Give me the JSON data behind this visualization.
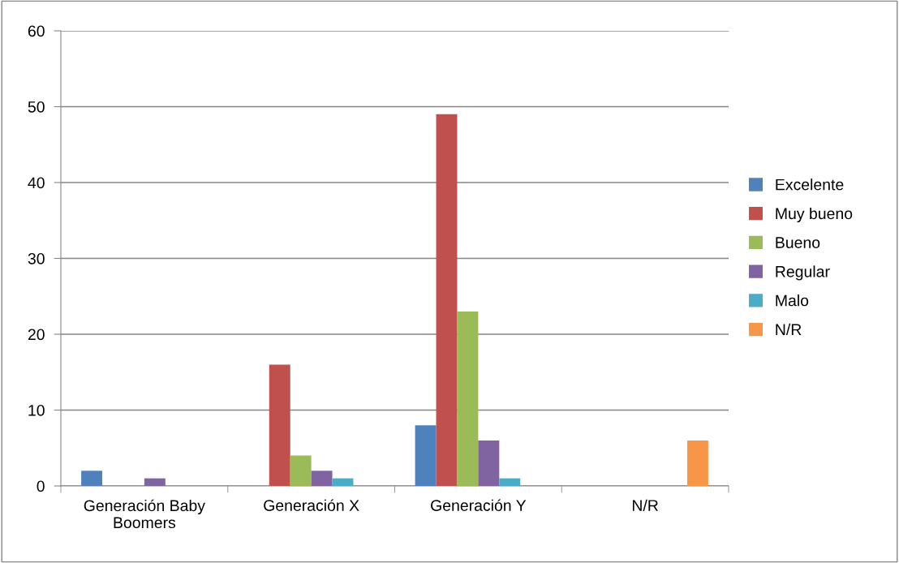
{
  "chart_data": {
    "type": "bar",
    "categories": [
      "Generación Baby Boomers",
      "Generación X",
      "Generación Y",
      "N/R"
    ],
    "series": [
      {
        "name": "Excelente",
        "color": "#4f81bd",
        "values": [
          2,
          0,
          8,
          0
        ]
      },
      {
        "name": "Muy bueno",
        "color": "#c0504d",
        "values": [
          0,
          16,
          49,
          0
        ]
      },
      {
        "name": "Bueno",
        "color": "#9bbb59",
        "values": [
          0,
          4,
          23,
          0
        ]
      },
      {
        "name": "Regular",
        "color": "#8064a2",
        "values": [
          1,
          2,
          6,
          0
        ]
      },
      {
        "name": "Malo",
        "color": "#4bacc6",
        "values": [
          0,
          1,
          1,
          0
        ]
      },
      {
        "name": "N/R",
        "color": "#f79646",
        "values": [
          0,
          0,
          0,
          6
        ]
      }
    ],
    "ylim": [
      0,
      60
    ],
    "yticks": [
      0,
      10,
      20,
      30,
      40,
      50,
      60
    ],
    "grid": "y",
    "legend": "right"
  }
}
